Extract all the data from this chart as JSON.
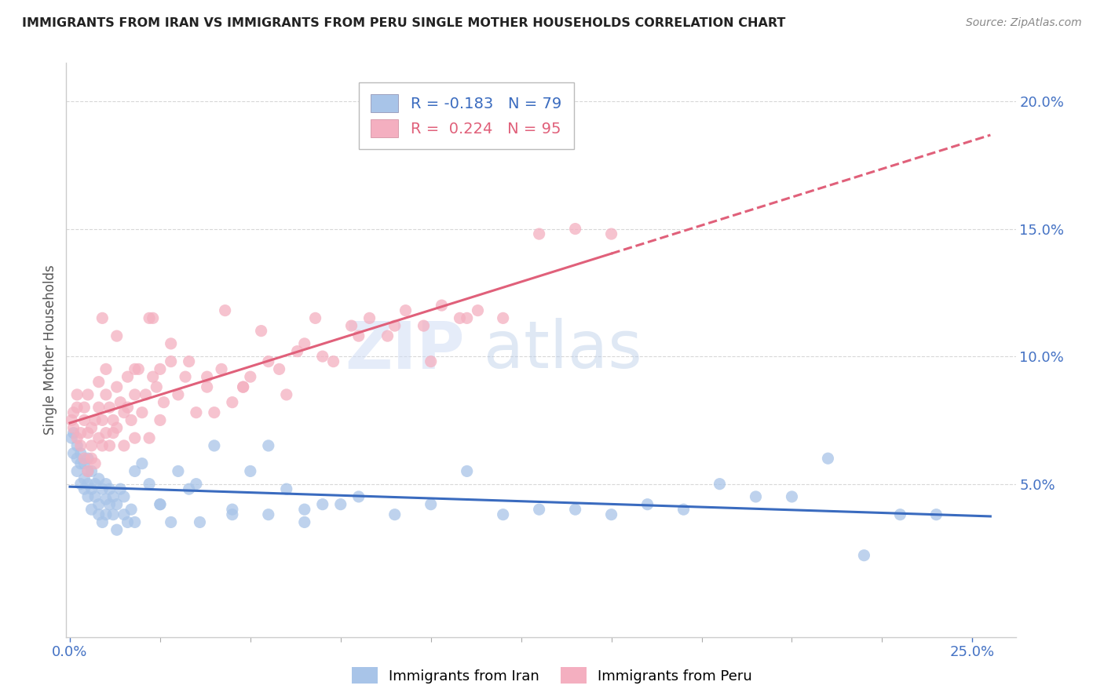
{
  "title": "IMMIGRANTS FROM IRAN VS IMMIGRANTS FROM PERU SINGLE MOTHER HOUSEHOLDS CORRELATION CHART",
  "source": "Source: ZipAtlas.com",
  "ylabel": "Single Mother Households",
  "x_tick_labels_bottom": [
    "0.0%",
    "25.0%"
  ],
  "x_tick_positions_bottom": [
    0.0,
    0.25
  ],
  "right_y_ticks": [
    0.05,
    0.1,
    0.15,
    0.2
  ],
  "right_y_tick_labels": [
    "5.0%",
    "10.0%",
    "15.0%",
    "20.0%"
  ],
  "xlim": [
    -0.001,
    0.262
  ],
  "ylim": [
    -0.01,
    0.215
  ],
  "iran_color": "#a8c4e8",
  "peru_color": "#f4afc0",
  "iran_line_color": "#3a6bbf",
  "peru_line_color": "#e0607a",
  "legend_iran_R": "-0.183",
  "legend_iran_N": "79",
  "legend_peru_R": "0.224",
  "legend_peru_N": "95",
  "background_color": "#ffffff",
  "grid_color": "#d8d8d8",
  "axis_color": "#4472c4",
  "title_color": "#222222",
  "watermark_color": "#d0ddf5",
  "legend_edge_color": "#bbbbbb",
  "iran_x": [
    0.0005,
    0.001,
    0.001,
    0.002,
    0.002,
    0.002,
    0.003,
    0.003,
    0.003,
    0.004,
    0.004,
    0.004,
    0.005,
    0.005,
    0.005,
    0.005,
    0.006,
    0.006,
    0.006,
    0.007,
    0.007,
    0.008,
    0.008,
    0.008,
    0.009,
    0.009,
    0.01,
    0.01,
    0.01,
    0.011,
    0.011,
    0.012,
    0.012,
    0.013,
    0.013,
    0.014,
    0.015,
    0.015,
    0.016,
    0.017,
    0.018,
    0.02,
    0.022,
    0.025,
    0.028,
    0.03,
    0.033,
    0.036,
    0.04,
    0.045,
    0.05,
    0.055,
    0.06,
    0.065,
    0.07,
    0.08,
    0.09,
    0.1,
    0.11,
    0.12,
    0.13,
    0.14,
    0.15,
    0.16,
    0.17,
    0.18,
    0.19,
    0.2,
    0.21,
    0.22,
    0.23,
    0.24,
    0.018,
    0.025,
    0.035,
    0.045,
    0.055,
    0.065,
    0.075
  ],
  "iran_y": [
    0.068,
    0.07,
    0.062,
    0.065,
    0.055,
    0.06,
    0.058,
    0.05,
    0.062,
    0.052,
    0.048,
    0.058,
    0.045,
    0.055,
    0.06,
    0.05,
    0.048,
    0.04,
    0.055,
    0.045,
    0.05,
    0.038,
    0.042,
    0.052,
    0.035,
    0.048,
    0.038,
    0.044,
    0.05,
    0.042,
    0.048,
    0.038,
    0.045,
    0.032,
    0.042,
    0.048,
    0.038,
    0.045,
    0.035,
    0.04,
    0.055,
    0.058,
    0.05,
    0.042,
    0.035,
    0.055,
    0.048,
    0.035,
    0.065,
    0.04,
    0.055,
    0.038,
    0.048,
    0.035,
    0.042,
    0.045,
    0.038,
    0.042,
    0.055,
    0.038,
    0.04,
    0.04,
    0.038,
    0.042,
    0.04,
    0.05,
    0.045,
    0.045,
    0.06,
    0.022,
    0.038,
    0.038,
    0.035,
    0.042,
    0.05,
    0.038,
    0.065,
    0.04,
    0.042
  ],
  "peru_x": [
    0.0005,
    0.001,
    0.001,
    0.002,
    0.002,
    0.002,
    0.003,
    0.003,
    0.004,
    0.004,
    0.004,
    0.005,
    0.005,
    0.005,
    0.006,
    0.006,
    0.006,
    0.007,
    0.007,
    0.008,
    0.008,
    0.008,
    0.009,
    0.009,
    0.01,
    0.01,
    0.01,
    0.011,
    0.011,
    0.012,
    0.012,
    0.013,
    0.013,
    0.014,
    0.015,
    0.015,
    0.016,
    0.016,
    0.017,
    0.018,
    0.018,
    0.019,
    0.02,
    0.021,
    0.022,
    0.022,
    0.023,
    0.024,
    0.025,
    0.025,
    0.026,
    0.028,
    0.03,
    0.032,
    0.035,
    0.038,
    0.04,
    0.042,
    0.045,
    0.048,
    0.05,
    0.055,
    0.06,
    0.065,
    0.07,
    0.08,
    0.09,
    0.1,
    0.11,
    0.12,
    0.13,
    0.14,
    0.15,
    0.009,
    0.013,
    0.018,
    0.023,
    0.028,
    0.033,
    0.038,
    0.043,
    0.048,
    0.053,
    0.058,
    0.063,
    0.068,
    0.073,
    0.078,
    0.083,
    0.088,
    0.093,
    0.098,
    0.103,
    0.108,
    0.113
  ],
  "peru_y": [
    0.075,
    0.072,
    0.078,
    0.068,
    0.08,
    0.085,
    0.07,
    0.065,
    0.075,
    0.06,
    0.08,
    0.055,
    0.07,
    0.085,
    0.06,
    0.072,
    0.065,
    0.075,
    0.058,
    0.068,
    0.08,
    0.09,
    0.065,
    0.075,
    0.07,
    0.085,
    0.095,
    0.065,
    0.08,
    0.075,
    0.07,
    0.088,
    0.072,
    0.082,
    0.065,
    0.078,
    0.08,
    0.092,
    0.075,
    0.068,
    0.085,
    0.095,
    0.078,
    0.085,
    0.115,
    0.068,
    0.092,
    0.088,
    0.075,
    0.095,
    0.082,
    0.098,
    0.085,
    0.092,
    0.078,
    0.088,
    0.078,
    0.095,
    0.082,
    0.088,
    0.092,
    0.098,
    0.085,
    0.105,
    0.1,
    0.108,
    0.112,
    0.098,
    0.115,
    0.115,
    0.148,
    0.15,
    0.148,
    0.115,
    0.108,
    0.095,
    0.115,
    0.105,
    0.098,
    0.092,
    0.118,
    0.088,
    0.11,
    0.095,
    0.102,
    0.115,
    0.098,
    0.112,
    0.115,
    0.108,
    0.118,
    0.112,
    0.12,
    0.115,
    0.118
  ]
}
